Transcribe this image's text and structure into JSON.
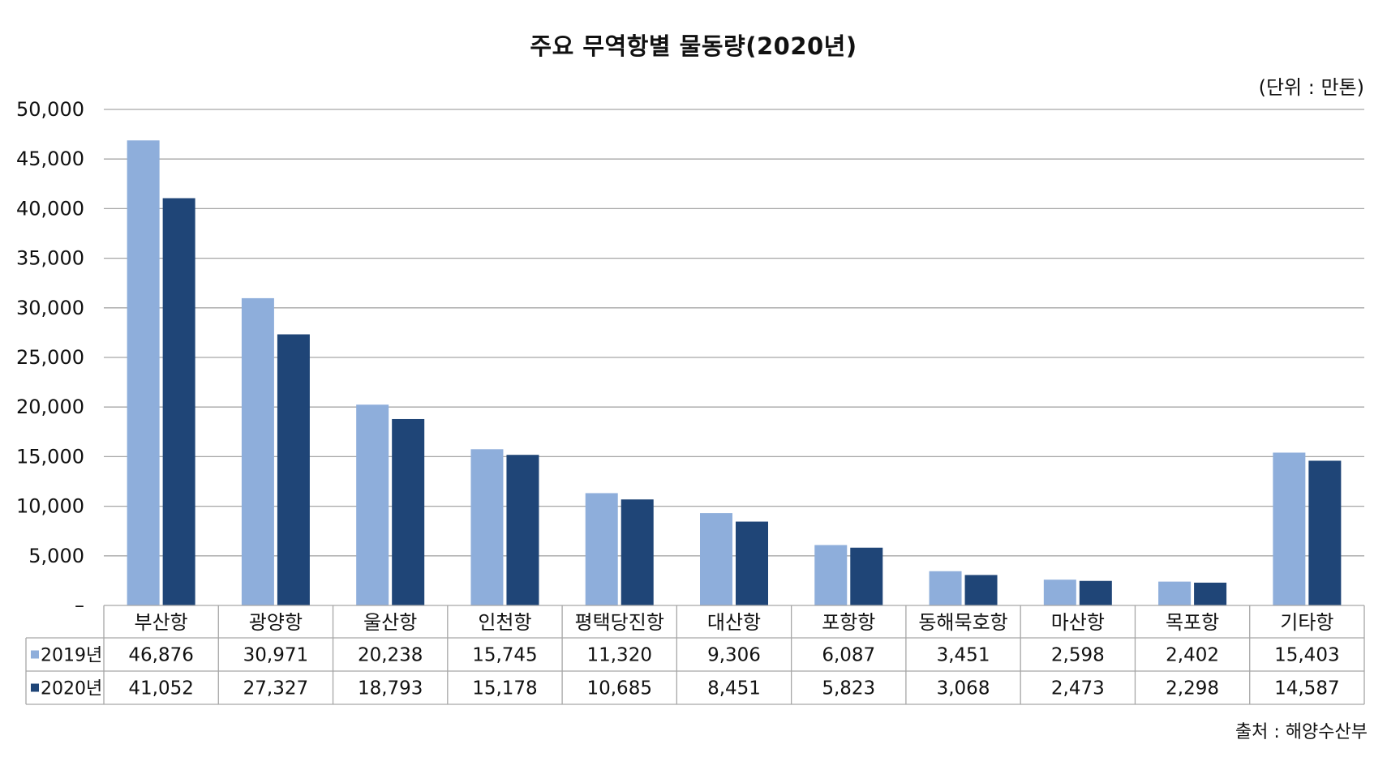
{
  "chart_data": {
    "type": "bar",
    "title": "주요 무역항별 물동량(2020년)",
    "unit": "(단위 : 만톤)",
    "source": "출처 : 해양수산부",
    "categories": [
      "부산항",
      "광양항",
      "울산항",
      "인천항",
      "평택당진항",
      "대산항",
      "포항항",
      "동해묵호항",
      "마산항",
      "목포항",
      "기타항"
    ],
    "series": [
      {
        "name": "2019년",
        "color": "#8eaedb",
        "values": [
          46876,
          30971,
          20238,
          15745,
          11320,
          9306,
          6087,
          3451,
          2598,
          2402,
          15403
        ],
        "labels": [
          "46,876",
          "30,971",
          "20,238",
          "15,745",
          "11,320",
          "9,306",
          "6,087",
          "3,451",
          "2,598",
          "2,402",
          "15,403"
        ]
      },
      {
        "name": "2020년",
        "color": "#1f4577",
        "values": [
          41052,
          27327,
          18793,
          15178,
          10685,
          8451,
          5823,
          3068,
          2473,
          2298,
          14587
        ],
        "labels": [
          "41,052",
          "27,327",
          "18,793",
          "15,178",
          "10,685",
          "8,451",
          "5,823",
          "3,068",
          "2,473",
          "2,298",
          "14,587"
        ]
      }
    ],
    "ylim": [
      0,
      50000
    ],
    "yticks": [
      0,
      5000,
      10000,
      15000,
      20000,
      25000,
      30000,
      35000,
      40000,
      45000,
      50000
    ],
    "ytick_labels": [
      "–",
      "5,000",
      "10,000",
      "15,000",
      "20,000",
      "25,000",
      "30,000",
      "35,000",
      "40,000",
      "45,000",
      "50,000"
    ],
    "grid": true,
    "legend": "data-table"
  }
}
